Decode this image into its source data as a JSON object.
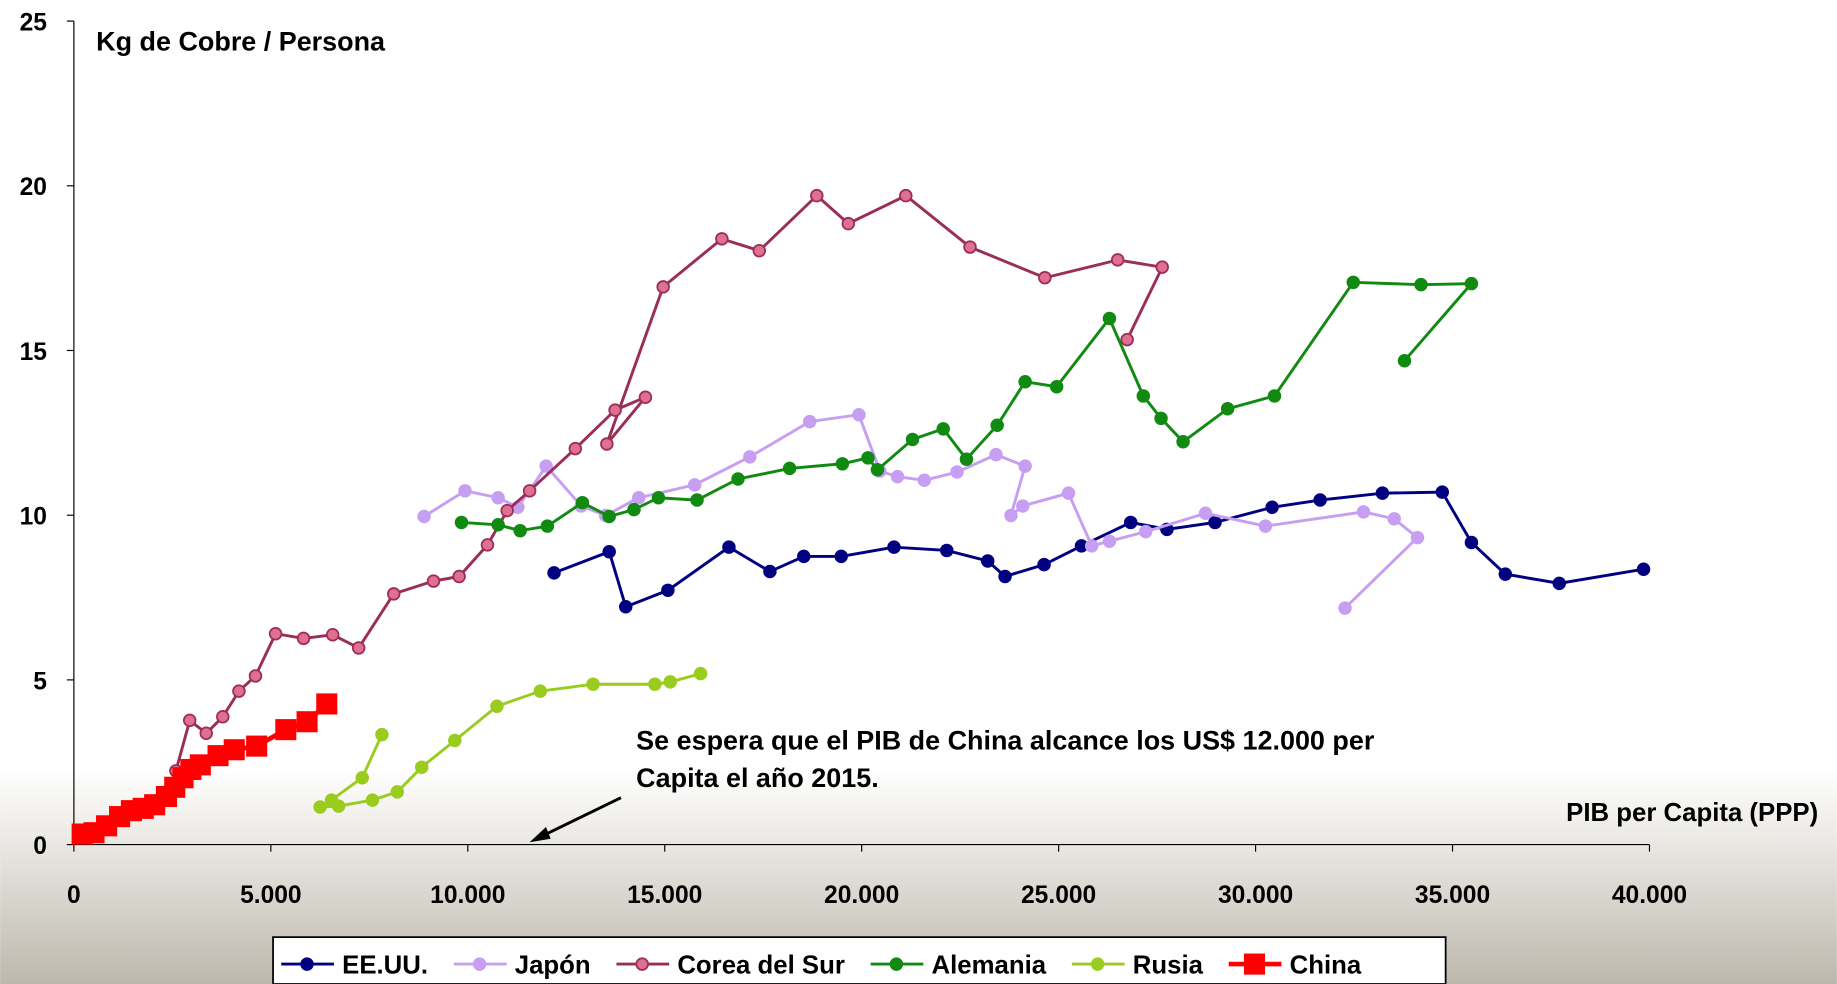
{
  "chart_data": {
    "type": "line",
    "title": "Kg de Cobre / Persona",
    "x_label": "PIB per Capita  (PPP)",
    "annotation": [
      "Se espera que el PIB de China alcance los US$ 12.000 per",
      "Capita el año 2015."
    ],
    "annotation_color": "#ff0000",
    "xlim": [
      0,
      40000
    ],
    "ylim": [
      0,
      25
    ],
    "xticks": [
      0,
      {
        "value": 5000,
        "label": "5.000"
      },
      {
        "value": 10000,
        "label": "10.000"
      },
      {
        "value": 15000,
        "label": "15.000"
      },
      {
        "value": 20000,
        "label": "20.000"
      },
      {
        "value": 25000,
        "label": "25.000"
      },
      {
        "value": 30000,
        "label": "30.000"
      },
      {
        "value": 35000,
        "label": "35.000"
      },
      {
        "value": 40000,
        "label": "40.000"
      }
    ],
    "yticks": [
      0,
      5,
      10,
      15,
      20,
      25
    ],
    "grid": false,
    "legend": "bottom",
    "series": [
      {
        "name": "EE.UU.",
        "color": "#000080",
        "marker": "circle",
        "x": [
          12190,
          13590,
          14010,
          15080,
          16630,
          17670,
          18530,
          19480,
          20820,
          22160,
          23200,
          23640,
          24630,
          25580,
          26830,
          27750,
          28970,
          30420,
          31640,
          33220,
          34740,
          35480,
          36340,
          37710,
          39850
        ],
        "values": [
          8.25,
          8.89,
          7.22,
          7.72,
          9.03,
          8.29,
          8.75,
          8.75,
          9.03,
          8.93,
          8.61,
          8.14,
          8.5,
          9.07,
          9.78,
          9.57,
          9.78,
          10.24,
          10.46,
          10.67,
          10.7,
          9.17,
          8.21,
          7.93,
          8.36
        ]
      },
      {
        "name": "Japón",
        "color": "#c79ff2",
        "marker": "circle",
        "x": [
          8890,
          9930,
          10770,
          11270,
          11990,
          12880,
          13500,
          14340,
          15760,
          17160,
          18680,
          19930,
          20460,
          20910,
          21590,
          22420,
          23410,
          24150,
          23790,
          24090,
          25250,
          25840,
          26290,
          27210,
          28730,
          30250,
          32740,
          33520,
          34110,
          32270
        ],
        "values": [
          9.96,
          10.74,
          10.53,
          10.24,
          11.49,
          10.28,
          9.99,
          10.53,
          10.92,
          11.77,
          12.84,
          13.05,
          11.34,
          11.17,
          11.06,
          11.31,
          11.84,
          11.49,
          9.99,
          10.28,
          10.67,
          9.07,
          9.21,
          9.5,
          10.06,
          9.67,
          10.1,
          9.89,
          9.32,
          7.18
        ]
      },
      {
        "name": "Corea del Sur",
        "color": "#9b2d5a",
        "marker": "circle",
        "x": [
          2590,
          2940,
          3360,
          3780,
          4190,
          4610,
          5120,
          5830,
          6570,
          7230,
          8120,
          9130,
          9780,
          10500,
          11000,
          11570,
          12730,
          13740,
          14510,
          13530,
          14960,
          16450,
          17400,
          18860,
          19660,
          21120,
          22750,
          24650,
          26500,
          27630,
          26740
        ],
        "values": [
          2.24,
          3.77,
          3.38,
          3.88,
          4.66,
          5.12,
          6.4,
          6.26,
          6.37,
          5.97,
          7.61,
          8.0,
          8.14,
          9.1,
          10.14,
          10.74,
          12.02,
          13.19,
          13.58,
          12.16,
          16.93,
          18.39,
          18.03,
          19.7,
          18.85,
          19.7,
          18.14,
          17.21,
          17.75,
          17.53,
          15.33
        ]
      },
      {
        "name": "Alemania",
        "color": "#118a11",
        "marker": "circle",
        "x": [
          9840,
          10770,
          11330,
          12020,
          12910,
          13590,
          14220,
          14840,
          15820,
          16860,
          18170,
          19510,
          20160,
          20400,
          21290,
          22070,
          22660,
          23440,
          24150,
          24950,
          26290,
          27150,
          27600,
          28160,
          29290,
          30480,
          32480,
          34200,
          35480,
          33780
        ],
        "values": [
          9.78,
          9.71,
          9.53,
          9.67,
          10.38,
          9.96,
          10.17,
          10.53,
          10.46,
          11.1,
          11.42,
          11.56,
          11.74,
          11.38,
          12.3,
          12.62,
          11.7,
          12.73,
          14.05,
          13.9,
          15.97,
          13.62,
          12.94,
          12.23,
          13.23,
          13.62,
          17.07,
          17.0,
          17.03,
          14.69
        ]
      },
      {
        "name": "Rusia",
        "color": "#99cc1f",
        "marker": "circle",
        "x": [
          7820,
          7320,
          6540,
          6250,
          6720,
          7580,
          8210,
          8830,
          9670,
          10740,
          11840,
          13180,
          14750,
          15140,
          15910
        ],
        "values": [
          3.34,
          2.03,
          1.35,
          1.14,
          1.17,
          1.35,
          1.6,
          2.35,
          3.16,
          4.2,
          4.66,
          4.87,
          4.87,
          4.94,
          5.19
        ]
      },
      {
        "name": "China",
        "color": "#ff0000",
        "marker": "square",
        "x": [
          210,
          510,
          830,
          1160,
          1460,
          1760,
          2050,
          2350,
          2560,
          2770,
          2970,
          3210,
          3660,
          4070,
          4640,
          5380,
          5920,
          6420
        ],
        "values": [
          0.32,
          0.36,
          0.57,
          0.85,
          1.03,
          1.1,
          1.21,
          1.46,
          1.74,
          2.03,
          2.28,
          2.42,
          2.7,
          2.88,
          2.99,
          3.49,
          3.73,
          4.27
        ]
      }
    ]
  }
}
